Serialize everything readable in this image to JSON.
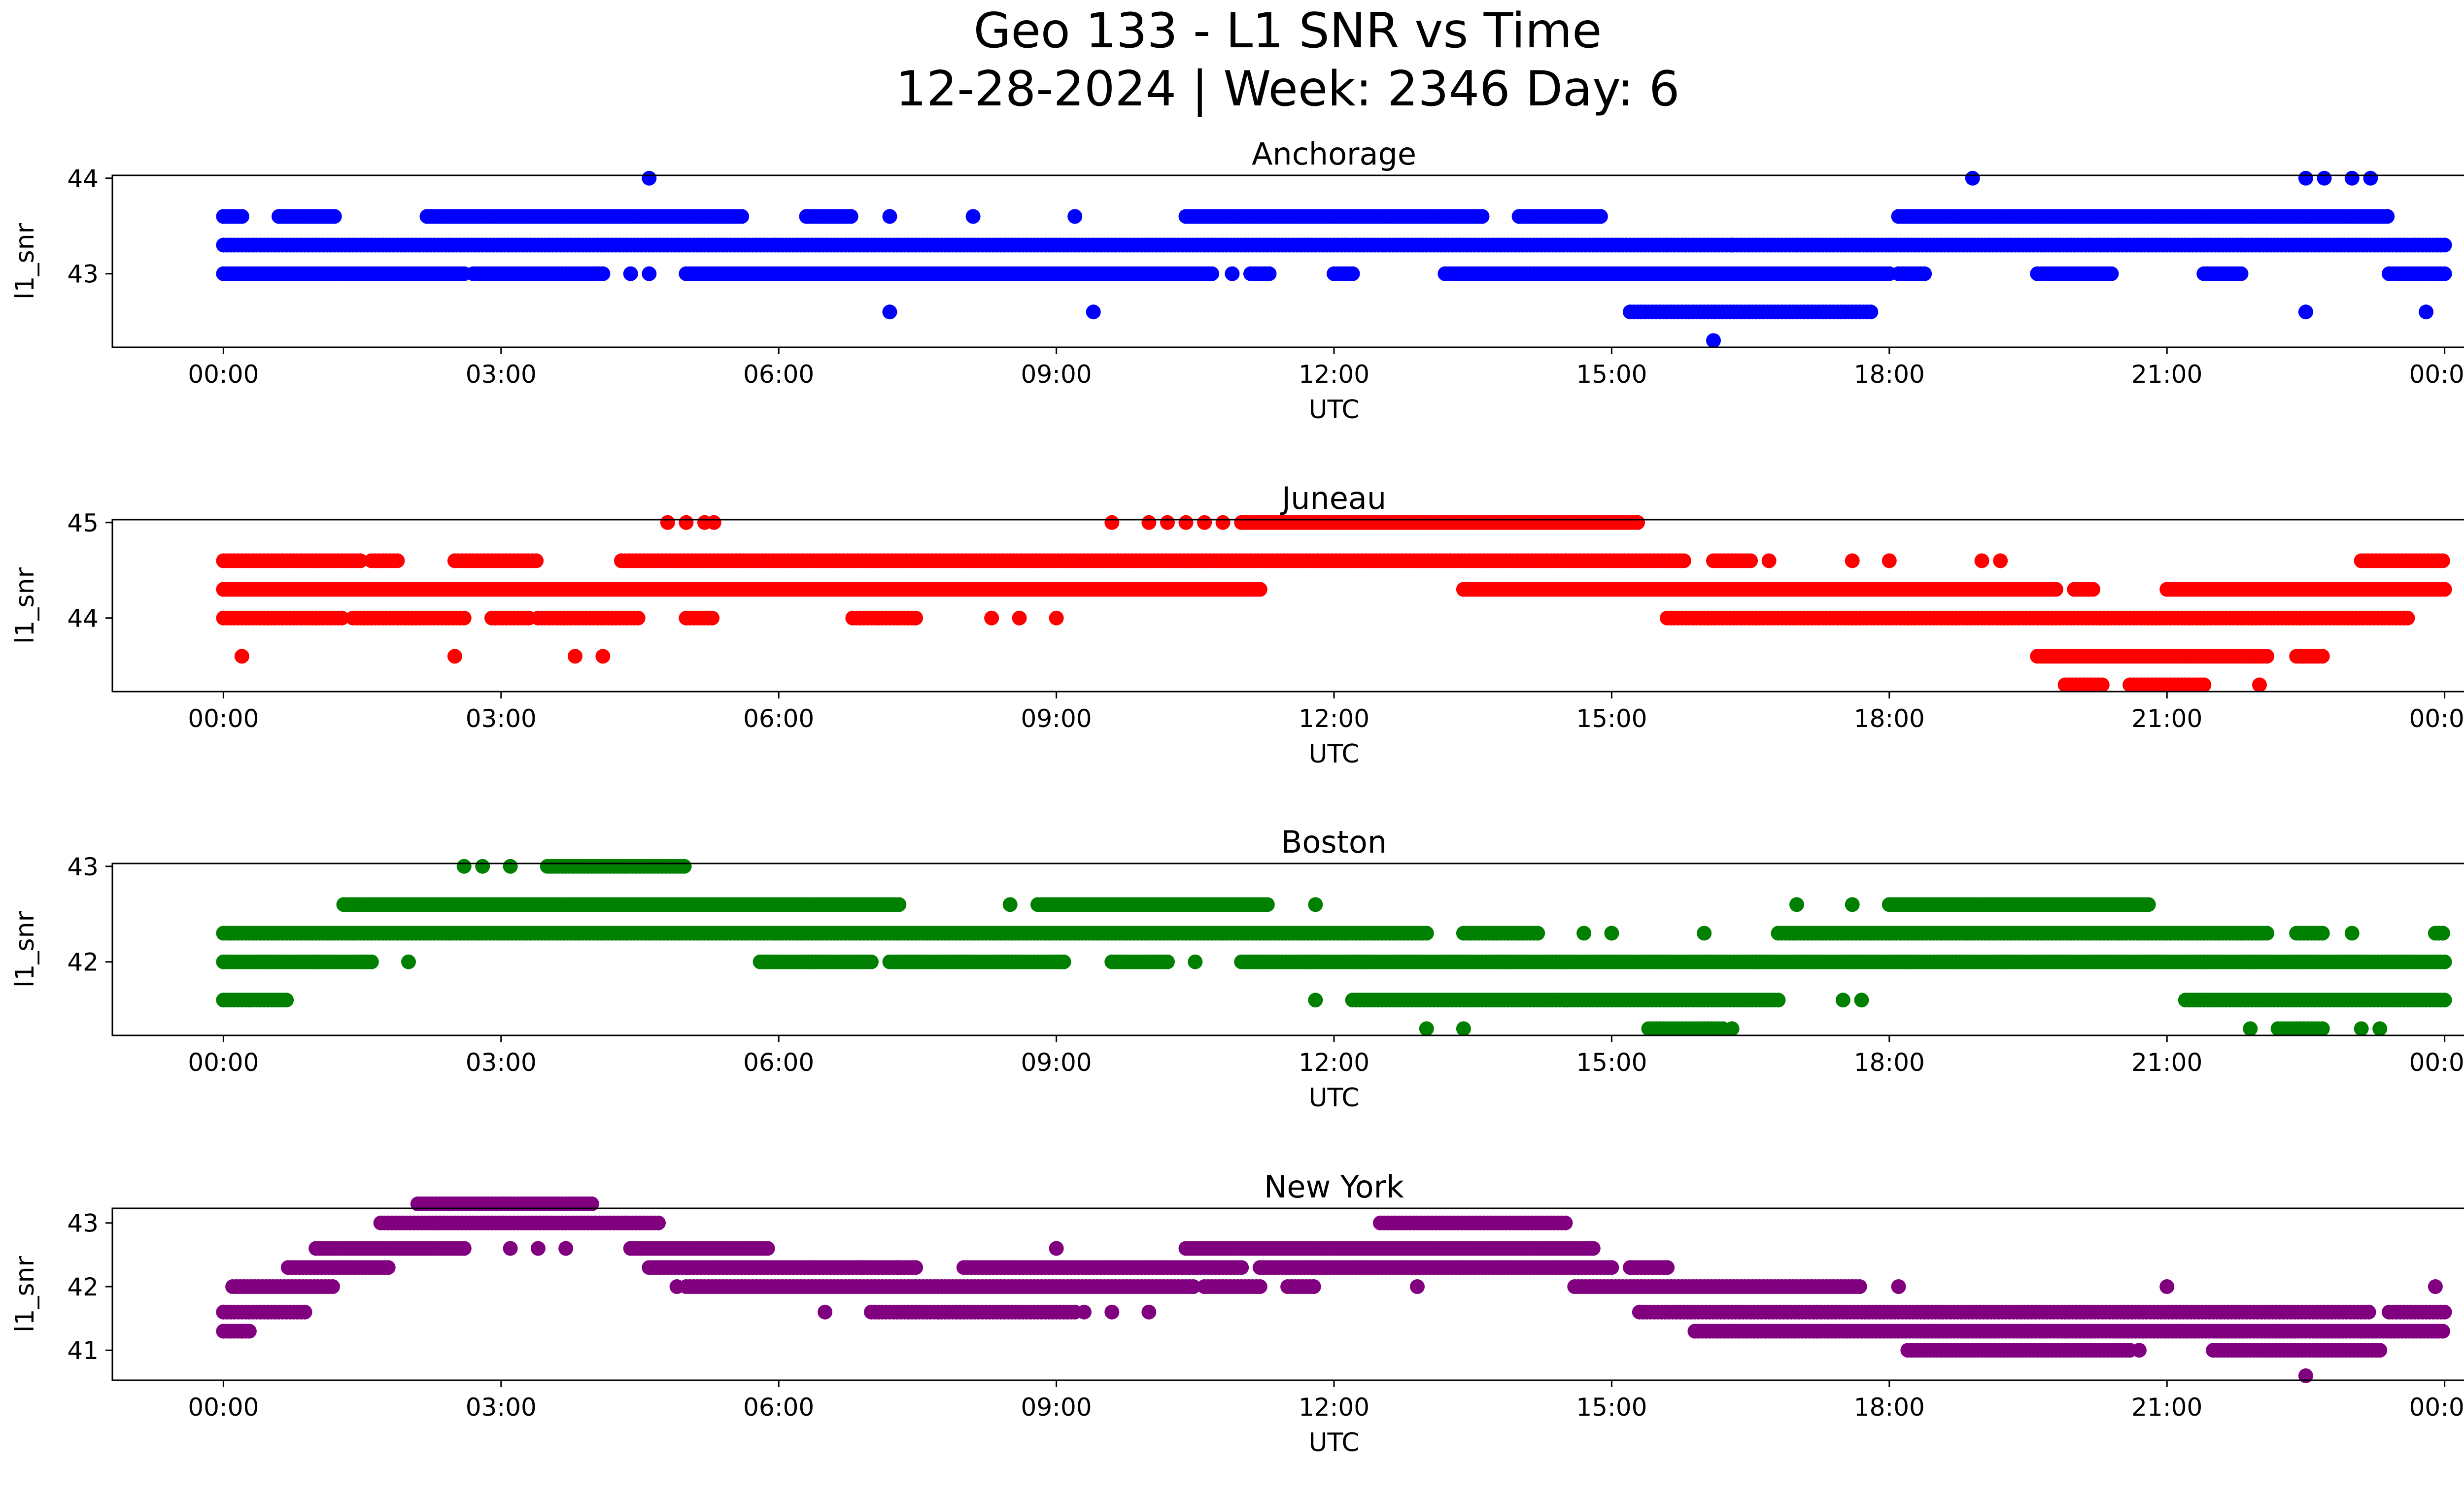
{
  "title_line1": "Geo 133 - L1 SNR vs Time",
  "title_line2": "12-28-2024 | Week: 2346 Day: 6",
  "chart_data": [
    {
      "type": "scatter",
      "title": "Anchorage",
      "xlabel": "UTC",
      "ylabel": "l1_snr",
      "xlim": [
        "00:00",
        "24:00"
      ],
      "xticks": [
        "00:00",
        "03:00",
        "06:00",
        "09:00",
        "12:00",
        "15:00",
        "18:00",
        "21:00",
        "00:00"
      ],
      "ylim": [
        42.23,
        44.03
      ],
      "yticks": [
        43,
        44
      ],
      "color": "#0000ff",
      "series": [
        {
          "segments": [
            [
              0.0,
              24.0,
              43.3
            ]
          ]
        },
        {
          "segments": [
            [
              0.0,
              2.6,
              43.0
            ],
            [
              2.7,
              4.1,
              43.0
            ],
            [
              5.0,
              10.7,
              43.0
            ],
            [
              11.1,
              11.3,
              43.0
            ],
            [
              12.0,
              12.2,
              43.0
            ],
            [
              13.2,
              18.0,
              43.0
            ],
            [
              18.1,
              18.4,
              43.0
            ],
            [
              19.6,
              20.4,
              43.0
            ],
            [
              21.4,
              21.8,
              43.0
            ],
            [
              23.4,
              24.0,
              43.0
            ]
          ]
        },
        {
          "segments": [
            [
              0.0,
              0.2,
              43.6
            ],
            [
              0.6,
              1.2,
              43.6
            ],
            [
              2.2,
              5.6,
              43.6
            ],
            [
              6.3,
              6.8,
              43.6
            ],
            [
              10.4,
              13.6,
              43.6
            ],
            [
              14.0,
              14.9,
              43.6
            ],
            [
              18.1,
              23.4,
              43.6
            ]
          ]
        },
        {
          "segments": [
            [
              15.2,
              17.8,
              42.6
            ]
          ]
        },
        {
          "points": [
            [
              4.6,
              44.0
            ],
            [
              18.9,
              44.0
            ],
            [
              22.5,
              44.0
            ],
            [
              22.7,
              44.0
            ],
            [
              23.0,
              44.0
            ],
            [
              23.2,
              44.0
            ],
            [
              7.2,
              42.6
            ],
            [
              9.4,
              42.6
            ],
            [
              22.5,
              42.6
            ],
            [
              23.8,
              42.6
            ],
            [
              16.1,
              42.3
            ],
            [
              8.1,
              43.6
            ],
            [
              7.2,
              43.6
            ],
            [
              9.2,
              43.6
            ],
            [
              4.0,
              43.0
            ],
            [
              4.4,
              43.0
            ],
            [
              4.6,
              43.0
            ],
            [
              10.9,
              43.0
            ],
            [
              15.6,
              43.3
            ],
            [
              15.8,
              43.3
            ],
            [
              16.3,
              43.3
            ],
            [
              17.0,
              43.3
            ]
          ]
        }
      ]
    },
    {
      "type": "scatter",
      "title": "Juneau",
      "xlabel": "UTC",
      "ylabel": "l1_snr",
      "xlim": [
        "00:00",
        "24:00"
      ],
      "xticks": [
        "00:00",
        "03:00",
        "06:00",
        "09:00",
        "12:00",
        "15:00",
        "18:00",
        "21:00",
        "00:00"
      ],
      "ylim": [
        43.23,
        45.03
      ],
      "yticks": [
        44,
        45
      ],
      "color": "#ff0000",
      "series": [
        {
          "segments": [
            [
              0.0,
              11.2,
              44.3
            ],
            [
              13.4,
              19.8,
              44.3
            ],
            [
              20.0,
              20.2,
              44.3
            ],
            [
              21.0,
              24.0,
              44.3
            ]
          ]
        },
        {
          "segments": [
            [
              0.0,
              1.5,
              44.6
            ],
            [
              1.6,
              1.9,
              44.6
            ],
            [
              2.5,
              3.4,
              44.6
            ],
            [
              4.3,
              15.8,
              44.6
            ],
            [
              16.1,
              16.5,
              44.6
            ],
            [
              23.1,
              24.0,
              44.6
            ]
          ]
        },
        {
          "segments": [
            [
              0.0,
              1.3,
              44.0
            ],
            [
              1.4,
              2.6,
              44.0
            ],
            [
              2.9,
              3.3,
              44.0
            ],
            [
              3.4,
              4.5,
              44.0
            ],
            [
              5.0,
              5.3,
              44.0
            ],
            [
              6.8,
              7.5,
              44.0
            ],
            [
              15.6,
              23.6,
              44.0
            ]
          ]
        },
        {
          "segments": [
            [
              11.0,
              15.3,
              45.0
            ],
            [
              19.6,
              22.1,
              43.6
            ],
            [
              22.4,
              22.7,
              43.6
            ],
            [
              19.9,
              20.3,
              43.3
            ],
            [
              20.6,
              21.4,
              43.3
            ]
          ]
        },
        {
          "points": [
            [
              0.2,
              43.6
            ],
            [
              2.5,
              43.6
            ],
            [
              3.8,
              43.6
            ],
            [
              4.1,
              43.6
            ],
            [
              4.8,
              45.0
            ],
            [
              5.0,
              45.0
            ],
            [
              5.2,
              45.0
            ],
            [
              5.3,
              45.0
            ],
            [
              9.6,
              45.0
            ],
            [
              10.0,
              45.0
            ],
            [
              10.2,
              45.0
            ],
            [
              10.4,
              45.0
            ],
            [
              10.6,
              45.0
            ],
            [
              10.8,
              45.0
            ],
            [
              8.3,
              44.0
            ],
            [
              8.6,
              44.0
            ],
            [
              9.0,
              44.0
            ],
            [
              16.7,
              44.6
            ],
            [
              17.6,
              44.6
            ],
            [
              18.0,
              44.6
            ],
            [
              19.0,
              44.6
            ],
            [
              19.2,
              44.6
            ],
            [
              22.0,
              43.3
            ]
          ]
        }
      ]
    },
    {
      "type": "scatter",
      "title": "Boston",
      "xlabel": "UTC",
      "ylabel": "l1_snr",
      "xlim": [
        "00:00",
        "24:00"
      ],
      "xticks": [
        "00:00",
        "03:00",
        "06:00",
        "09:00",
        "12:00",
        "15:00",
        "18:00",
        "21:00",
        "00:00"
      ],
      "ylim": [
        41.23,
        43.03
      ],
      "yticks": [
        42,
        43
      ],
      "color": "#008000",
      "series": [
        {
          "segments": [
            [
              0.0,
              13.0,
              42.3
            ],
            [
              13.4,
              14.2,
              42.3
            ],
            [
              16.8,
              22.1,
              42.3
            ],
            [
              22.4,
              22.7,
              42.3
            ],
            [
              23.9,
              24.0,
              42.3
            ]
          ]
        },
        {
          "segments": [
            [
              0.0,
              1.6,
              42.0
            ],
            [
              5.8,
              7.0,
              42.0
            ],
            [
              7.2,
              9.1,
              42.0
            ],
            [
              9.6,
              10.2,
              42.0
            ],
            [
              11.0,
              24.0,
              42.0
            ]
          ]
        },
        {
          "segments": [
            [
              0.0,
              0.7,
              41.6
            ],
            [
              12.2,
              16.8,
              41.6
            ],
            [
              21.2,
              24.0,
              41.6
            ]
          ]
        },
        {
          "segments": [
            [
              1.3,
              7.3,
              42.6
            ],
            [
              8.8,
              11.3,
              42.6
            ],
            [
              18.0,
              20.8,
              42.6
            ],
            [
              3.5,
              5.0,
              43.0
            ],
            [
              15.4,
              16.2,
              41.3
            ],
            [
              22.2,
              22.7,
              41.3
            ]
          ]
        },
        {
          "points": [
            [
              2.6,
              43.0
            ],
            [
              2.8,
              43.0
            ],
            [
              3.1,
              43.0
            ],
            [
              2.0,
              42.0
            ],
            [
              10.5,
              42.0
            ],
            [
              11.8,
              41.6
            ],
            [
              17.5,
              41.6
            ],
            [
              17.7,
              41.6
            ],
            [
              13.0,
              41.3
            ],
            [
              13.4,
              41.3
            ],
            [
              16.3,
              41.3
            ],
            [
              21.9,
              41.3
            ],
            [
              23.1,
              41.3
            ],
            [
              23.3,
              41.3
            ],
            [
              11.8,
              42.6
            ],
            [
              8.5,
              42.6
            ],
            [
              17.0,
              42.6
            ],
            [
              17.6,
              42.6
            ],
            [
              15.0,
              42.3
            ],
            [
              16.0,
              42.3
            ],
            [
              23.0,
              42.3
            ],
            [
              14.7,
              42.3
            ]
          ]
        }
      ]
    },
    {
      "type": "scatter",
      "title": "New York",
      "xlabel": "UTC",
      "ylabel": "l1_snr",
      "xlim": [
        "00:00",
        "24:00"
      ],
      "xticks": [
        "00:00",
        "03:00",
        "06:00",
        "09:00",
        "12:00",
        "15:00",
        "18:00",
        "21:00",
        "00:00"
      ],
      "ylim": [
        40.53,
        43.23
      ],
      "yticks": [
        41,
        42,
        43
      ],
      "color": "#800080",
      "series": [
        {
          "segments": [
            [
              0.0,
              0.3,
              41.3
            ],
            [
              0.0,
              0.9,
              41.6
            ],
            [
              0.1,
              1.2,
              42.0
            ],
            [
              0.7,
              1.8,
              42.3
            ],
            [
              1.0,
              2.6,
              42.6
            ],
            [
              1.7,
              4.7,
              43.0
            ],
            [
              2.1,
              4.0,
              43.3
            ]
          ]
        },
        {
          "segments": [
            [
              4.4,
              5.9,
              42.6
            ],
            [
              4.6,
              7.5,
              42.3
            ],
            [
              8.0,
              11.0,
              42.3
            ],
            [
              11.2,
              15.0,
              42.3
            ],
            [
              15.2,
              15.6,
              42.3
            ]
          ]
        },
        {
          "segments": [
            [
              5.0,
              10.5,
              42.0
            ],
            [
              10.6,
              11.2,
              42.0
            ],
            [
              11.5,
              11.8,
              42.0
            ],
            [
              14.6,
              17.7,
              42.0
            ]
          ]
        },
        {
          "segments": [
            [
              7.0,
              9.2,
              41.6
            ],
            [
              15.3,
              23.2,
              41.6
            ],
            [
              23.4,
              24.0,
              41.6
            ],
            [
              15.9,
              24.0,
              41.3
            ]
          ]
        },
        {
          "segments": [
            [
              10.4,
              14.8,
              42.6
            ],
            [
              12.5,
              14.5,
              43.0
            ],
            [
              18.2,
              20.6,
              41.0
            ],
            [
              21.5,
              23.3,
              41.0
            ]
          ]
        },
        {
          "points": [
            [
              0.0,
              41.6
            ],
            [
              0.2,
              41.3
            ],
            [
              3.4,
              42.6
            ],
            [
              3.7,
              42.6
            ],
            [
              3.1,
              42.6
            ],
            [
              2.6,
              42.6
            ],
            [
              4.9,
              42.0
            ],
            [
              6.5,
              41.6
            ],
            [
              9.3,
              41.6
            ],
            [
              9.6,
              41.6
            ],
            [
              9.0,
              42.6
            ],
            [
              12.9,
              42.0
            ],
            [
              18.1,
              42.0
            ],
            [
              21.0,
              42.0
            ],
            [
              22.5,
              40.6
            ],
            [
              23.9,
              42.0
            ],
            [
              6.9,
              42.3
            ],
            [
              7.3,
              42.3
            ],
            [
              10.0,
              41.6
            ],
            [
              20.7,
              41.0
            ]
          ]
        }
      ]
    }
  ]
}
